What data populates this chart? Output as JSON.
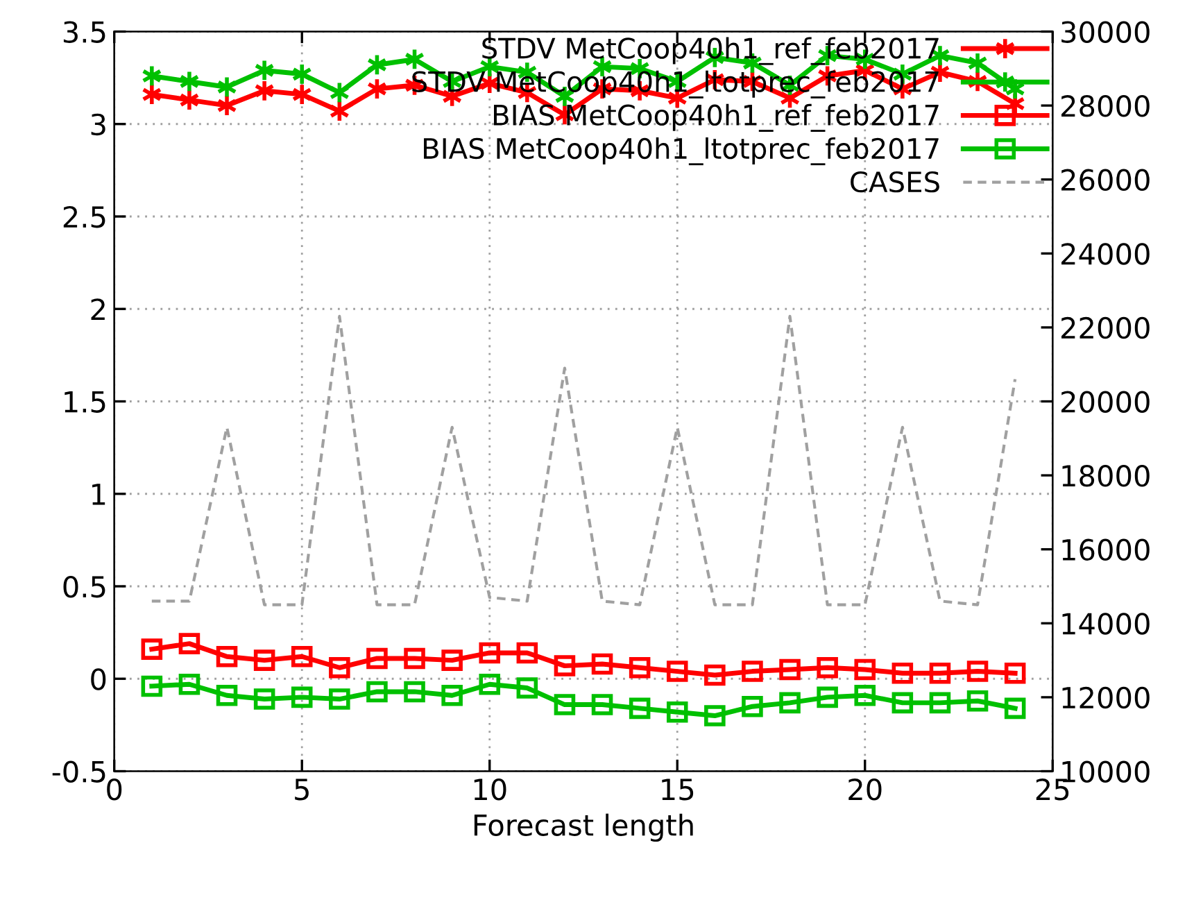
{
  "chart_data": {
    "type": "line",
    "xlabel": "Forecast length",
    "x": [
      1,
      2,
      3,
      4,
      5,
      6,
      7,
      8,
      9,
      10,
      11,
      12,
      13,
      14,
      15,
      16,
      17,
      18,
      19,
      20,
      21,
      22,
      23,
      24
    ],
    "xlim": [
      0,
      25
    ],
    "xticks": [
      0,
      5,
      10,
      15,
      20,
      25
    ],
    "ylim": [
      -0.5,
      3.5
    ],
    "yticks": [
      -0.5,
      0,
      0.5,
      1,
      1.5,
      2,
      2.5,
      3,
      3.5
    ],
    "y2lim": [
      10000,
      30000
    ],
    "y2ticks": [
      10000,
      12000,
      14000,
      16000,
      18000,
      20000,
      22000,
      24000,
      26000,
      28000,
      30000
    ],
    "grid": true,
    "legend": "top right",
    "series": [
      {
        "name": "STDV MetCoop40h1_ref_feb2017",
        "color": "#ff0000",
        "marker": "cross",
        "line_style": "solid",
        "values": [
          3.16,
          3.13,
          3.1,
          3.18,
          3.16,
          3.07,
          3.19,
          3.21,
          3.15,
          3.22,
          3.17,
          3.05,
          3.19,
          3.18,
          3.14,
          3.24,
          3.23,
          3.14,
          3.26,
          3.29,
          3.19,
          3.28,
          3.23,
          3.11
        ]
      },
      {
        "name": "STDV MetCoop40h1_ltotprec_feb2017",
        "color": "#00c000",
        "marker": "cross",
        "line_style": "solid",
        "values": [
          3.26,
          3.23,
          3.2,
          3.29,
          3.27,
          3.17,
          3.32,
          3.35,
          3.23,
          3.31,
          3.28,
          3.15,
          3.31,
          3.3,
          3.23,
          3.36,
          3.33,
          3.21,
          3.37,
          3.35,
          3.27,
          3.37,
          3.33,
          3.19
        ]
      },
      {
        "name": "BIAS MetCoop40h1_ref_feb2017",
        "color": "#ff0000",
        "marker": "square",
        "line_style": "solid",
        "values": [
          0.16,
          0.19,
          0.12,
          0.1,
          0.12,
          0.06,
          0.11,
          0.11,
          0.1,
          0.14,
          0.14,
          0.07,
          0.08,
          0.06,
          0.04,
          0.02,
          0.04,
          0.05,
          0.06,
          0.05,
          0.03,
          0.03,
          0.04,
          0.03
        ]
      },
      {
        "name": "BIAS MetCoop40h1_ltotprec_feb2017",
        "color": "#00c000",
        "marker": "square",
        "line_style": "solid",
        "values": [
          -0.04,
          -0.03,
          -0.09,
          -0.11,
          -0.1,
          -0.11,
          -0.07,
          -0.07,
          -0.09,
          -0.03,
          -0.05,
          -0.14,
          -0.14,
          -0.16,
          -0.18,
          -0.2,
          -0.15,
          -0.13,
          -0.1,
          -0.09,
          -0.13,
          -0.13,
          -0.12,
          -0.16
        ]
      },
      {
        "name": "CASES",
        "color": "#a0a0a0",
        "marker": "none",
        "line_style": "dashed",
        "axis": "y2",
        "values": [
          14600,
          14600,
          19300,
          14500,
          14500,
          22300,
          14500,
          14500,
          19300,
          14700,
          14600,
          20900,
          14600,
          14500,
          19300,
          14500,
          14500,
          22300,
          14500,
          14500,
          19300,
          14600,
          14500,
          20600
        ]
      }
    ]
  }
}
